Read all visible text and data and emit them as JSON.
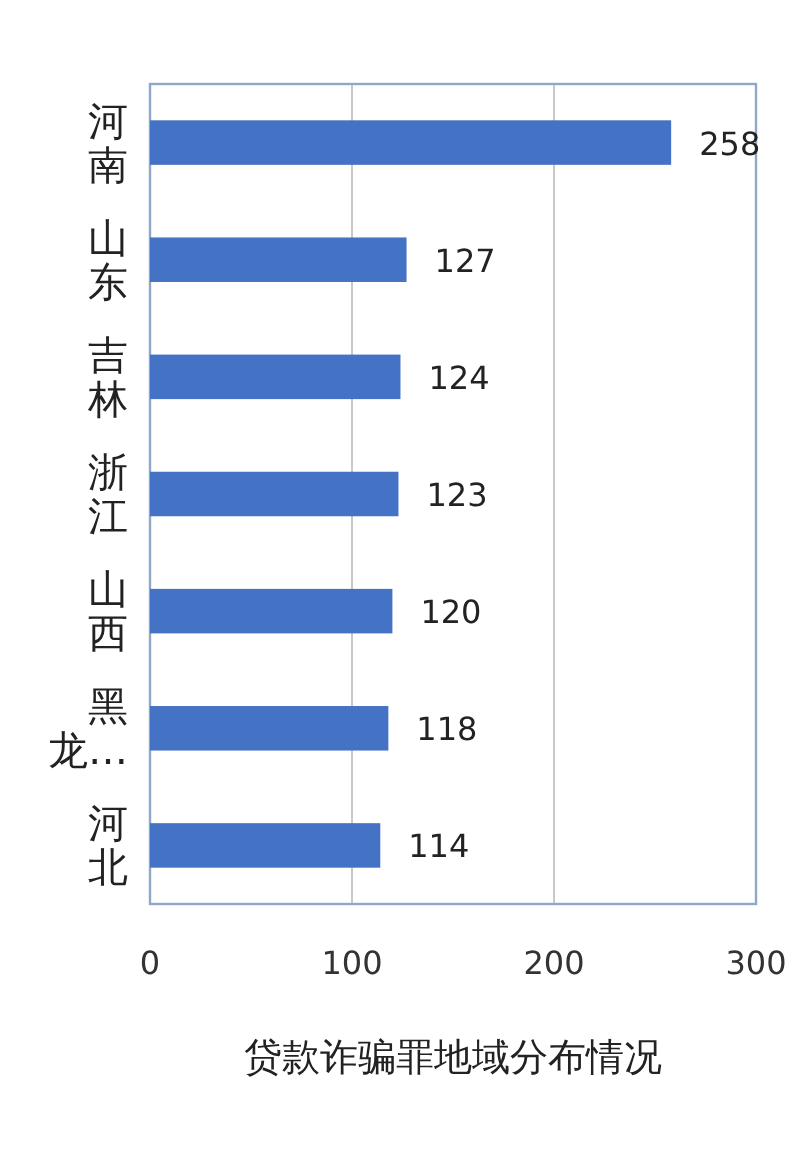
{
  "chart_data": {
    "type": "bar",
    "orientation": "horizontal",
    "title": "贷款诈骗罪地域分布情况",
    "categories": [
      "河南",
      "山东",
      "吉林",
      "浙江",
      "山西",
      "黑龙…",
      "河北"
    ],
    "values": [
      258,
      127,
      124,
      123,
      120,
      118,
      114
    ],
    "color": "#4472c4",
    "xlim": [
      0,
      300
    ],
    "xticks": [
      0,
      100,
      200,
      300
    ],
    "grid": "x",
    "data_labels": true
  }
}
